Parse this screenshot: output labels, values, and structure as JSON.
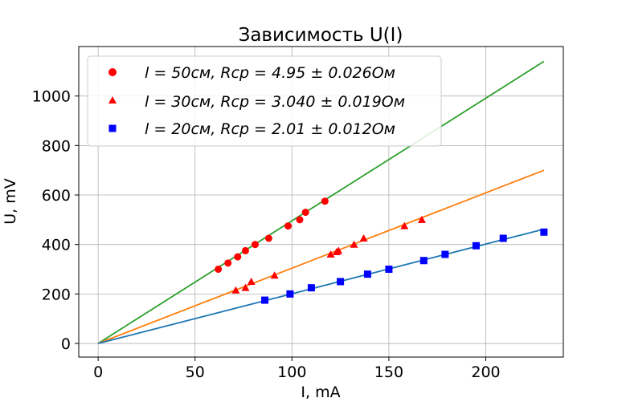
{
  "chart_data": {
    "type": "scatter",
    "title": "Зависимость U(I)",
    "xlabel": "I, mA",
    "ylabel": "U, mV",
    "xlim": [
      -10,
      240
    ],
    "ylim": [
      -55,
      1200
    ],
    "xticks": [
      0,
      50,
      100,
      150,
      200
    ],
    "yticks": [
      0,
      200,
      400,
      600,
      800,
      1000
    ],
    "grid": true,
    "legend_position": "top-left",
    "series": [
      {
        "name": "l = 50см, Rср = 4.95 ± 0.026Ом",
        "marker": "circle",
        "marker_color": "#ff0000",
        "x": [
          62,
          67,
          72,
          76,
          81,
          88,
          98,
          104,
          107,
          117
        ],
        "y": [
          300,
          325,
          350,
          375,
          400,
          425,
          475,
          500,
          530,
          575
        ],
        "fit": {
          "x": [
            0,
            230
          ],
          "y": [
            0,
            1140
          ],
          "color": "#2ca02c"
        }
      },
      {
        "name": "l = 30см, Rср = 3.040 ± 0.019Ом",
        "marker": "triangle",
        "marker_color": "#ff0000",
        "x": [
          71,
          76,
          79,
          91,
          120,
          123,
          124,
          132,
          137,
          158,
          167
        ],
        "y": [
          215,
          225,
          250,
          275,
          360,
          370,
          375,
          400,
          425,
          475,
          500
        ],
        "fit": {
          "x": [
            0,
            230
          ],
          "y": [
            0,
            700
          ],
          "color": "#ff7f0e"
        }
      },
      {
        "name": "l = 20см, Rср = 2.01 ± 0.012Ом",
        "marker": "square",
        "marker_color": "#0000ff",
        "x": [
          86,
          99,
          110,
          125,
          139,
          150,
          168,
          179,
          195,
          209,
          230
        ],
        "y": [
          175,
          200,
          225,
          250,
          280,
          300,
          335,
          360,
          395,
          425,
          450
        ],
        "fit": {
          "x": [
            0,
            230
          ],
          "y": [
            0,
            462
          ],
          "color": "#1f77b4"
        }
      }
    ]
  }
}
